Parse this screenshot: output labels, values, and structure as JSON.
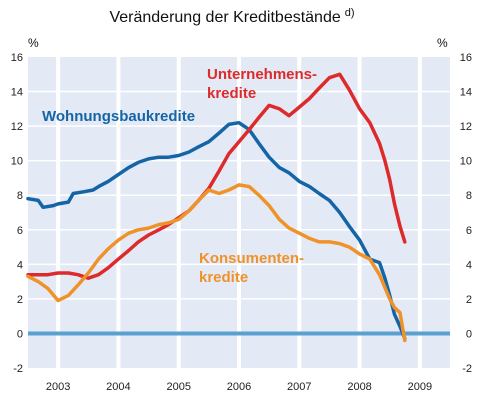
{
  "chart_data": {
    "type": "line",
    "title": "Veränderung der Kreditbestände",
    "title_footnote": "d)",
    "y_unit_left": "%",
    "y_unit_right": "%",
    "ylim": [
      -2,
      16
    ],
    "y_ticks": [
      -2,
      0,
      2,
      4,
      6,
      8,
      10,
      12,
      14,
      16
    ],
    "xlim": [
      2002.5,
      2009.5
    ],
    "x_ticks": [
      2003,
      2004,
      2005,
      2006,
      2007,
      2008,
      2009
    ],
    "x_tick_labels": [
      "2003",
      "2004",
      "2005",
      "2006",
      "2007",
      "2008",
      "2009"
    ],
    "grid": true,
    "zero_line": true,
    "series": [
      {
        "name": "Wohnungsbaukredite",
        "label_lines": [
          "Wohnungsbaukredite"
        ],
        "color": "#1565a6",
        "x": [
          2002.5,
          2002.67,
          2002.75,
          2002.92,
          2003.0,
          2003.17,
          2003.25,
          2003.42,
          2003.58,
          2003.67,
          2003.83,
          2004.0,
          2004.17,
          2004.33,
          2004.5,
          2004.67,
          2004.83,
          2005.0,
          2005.17,
          2005.33,
          2005.5,
          2005.67,
          2005.83,
          2006.0,
          2006.17,
          2006.33,
          2006.5,
          2006.67,
          2006.83,
          2007.0,
          2007.17,
          2007.33,
          2007.5,
          2007.67,
          2007.83,
          2008.0,
          2008.17,
          2008.33,
          2008.42,
          2008.5,
          2008.58,
          2008.67,
          2008.75
        ],
        "values": [
          7.8,
          7.7,
          7.3,
          7.4,
          7.5,
          7.6,
          8.1,
          8.2,
          8.3,
          8.5,
          8.8,
          9.2,
          9.6,
          9.9,
          10.1,
          10.2,
          10.2,
          10.3,
          10.5,
          10.8,
          11.1,
          11.6,
          12.1,
          12.2,
          11.8,
          11.0,
          10.2,
          9.6,
          9.3,
          8.8,
          8.5,
          8.1,
          7.7,
          7.0,
          6.2,
          5.4,
          4.3,
          4.1,
          3.2,
          2.2,
          1.1,
          0.4,
          -0.3
        ]
      },
      {
        "name": "Unternehmenskredite",
        "label_lines": [
          "Unternehmens-",
          "kredite"
        ],
        "color": "#dd2a2a",
        "x": [
          2002.5,
          2002.67,
          2002.83,
          2003.0,
          2003.17,
          2003.33,
          2003.5,
          2003.67,
          2003.83,
          2004.0,
          2004.17,
          2004.33,
          2004.5,
          2004.67,
          2004.83,
          2005.0,
          2005.17,
          2005.33,
          2005.5,
          2005.67,
          2005.83,
          2006.0,
          2006.17,
          2006.33,
          2006.5,
          2006.67,
          2006.83,
          2007.0,
          2007.17,
          2007.33,
          2007.5,
          2007.67,
          2007.83,
          2008.0,
          2008.17,
          2008.33,
          2008.42,
          2008.5,
          2008.58,
          2008.67,
          2008.75
        ],
        "values": [
          3.4,
          3.4,
          3.4,
          3.5,
          3.5,
          3.4,
          3.2,
          3.4,
          3.8,
          4.3,
          4.8,
          5.3,
          5.7,
          6.0,
          6.3,
          6.7,
          7.1,
          7.7,
          8.4,
          9.4,
          10.4,
          11.1,
          11.8,
          12.5,
          13.2,
          13.0,
          12.6,
          13.1,
          13.6,
          14.2,
          14.8,
          15.0,
          14.1,
          13.0,
          12.2,
          11.0,
          10.0,
          8.9,
          7.5,
          6.2,
          5.3
        ]
      },
      {
        "name": "Konsumentenkredite",
        "label_lines": [
          "Konsumenten-",
          "kredite"
        ],
        "color": "#f0922a",
        "x": [
          2002.5,
          2002.67,
          2002.83,
          2003.0,
          2003.17,
          2003.33,
          2003.5,
          2003.67,
          2003.83,
          2004.0,
          2004.17,
          2004.33,
          2004.5,
          2004.67,
          2004.83,
          2005.0,
          2005.17,
          2005.33,
          2005.5,
          2005.67,
          2005.83,
          2006.0,
          2006.17,
          2006.33,
          2006.5,
          2006.67,
          2006.83,
          2007.0,
          2007.17,
          2007.33,
          2007.5,
          2007.67,
          2007.83,
          2008.0,
          2008.17,
          2008.33,
          2008.5,
          2008.58,
          2008.67,
          2008.75
        ],
        "values": [
          3.3,
          3.0,
          2.6,
          1.9,
          2.2,
          2.8,
          3.5,
          4.3,
          4.9,
          5.4,
          5.8,
          6.0,
          6.1,
          6.3,
          6.4,
          6.6,
          7.1,
          7.7,
          8.3,
          8.1,
          8.3,
          8.6,
          8.5,
          8.0,
          7.4,
          6.6,
          6.1,
          5.8,
          5.5,
          5.3,
          5.3,
          5.2,
          5.0,
          4.6,
          4.3,
          3.4,
          2.0,
          1.5,
          1.2,
          -0.4
        ]
      }
    ]
  }
}
